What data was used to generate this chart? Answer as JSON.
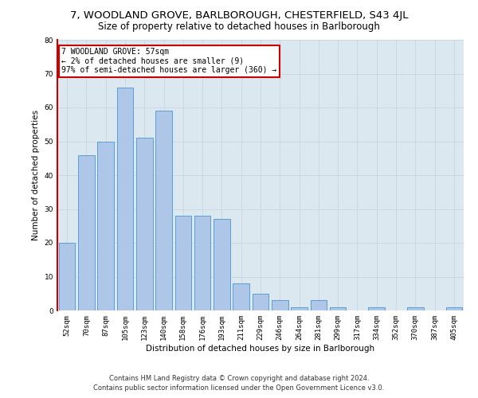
{
  "title_line1": "7, WOODLAND GROVE, BARLBOROUGH, CHESTERFIELD, S43 4JL",
  "title_line2": "Size of property relative to detached houses in Barlborough",
  "xlabel": "Distribution of detached houses by size in Barlborough",
  "ylabel": "Number of detached properties",
  "categories": [
    "52sqm",
    "70sqm",
    "87sqm",
    "105sqm",
    "123sqm",
    "140sqm",
    "158sqm",
    "176sqm",
    "193sqm",
    "211sqm",
    "229sqm",
    "246sqm",
    "264sqm",
    "281sqm",
    "299sqm",
    "317sqm",
    "334sqm",
    "352sqm",
    "370sqm",
    "387sqm",
    "405sqm"
  ],
  "values": [
    20,
    46,
    50,
    66,
    51,
    59,
    28,
    28,
    27,
    8,
    5,
    3,
    1,
    3,
    1,
    0,
    1,
    0,
    1,
    0,
    1
  ],
  "bar_color": "#aec6e8",
  "bar_edge_color": "#5a9fd4",
  "annotation_text": "7 WOODLAND GROVE: 57sqm\n← 2% of detached houses are smaller (9)\n97% of semi-detached houses are larger (360) →",
  "annotation_box_facecolor": "#ffffff",
  "annotation_box_edgecolor": "#cc0000",
  "ylim": [
    0,
    80
  ],
  "yticks": [
    0,
    10,
    20,
    30,
    40,
    50,
    60,
    70,
    80
  ],
  "grid_color": "#c8d4e0",
  "background_color": "#dce8f0",
  "footer_line1": "Contains HM Land Registry data © Crown copyright and database right 2024.",
  "footer_line2": "Contains public sector information licensed under the Open Government Licence v3.0.",
  "title_fontsize": 9.5,
  "subtitle_fontsize": 8.5,
  "axis_label_fontsize": 7.5,
  "tick_fontsize": 6.5,
  "annotation_fontsize": 7,
  "footer_fontsize": 6
}
